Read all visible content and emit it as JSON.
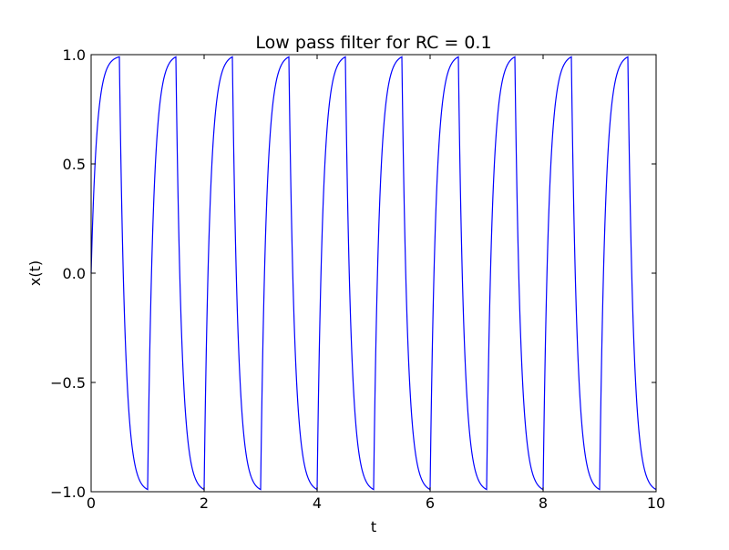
{
  "chart_data": {
    "type": "line",
    "title": "Low pass filter for RC = 0.1",
    "xlabel": "t",
    "ylabel": "x(t)",
    "xlim": [
      0,
      10
    ],
    "ylim": [
      -1.0,
      1.0
    ],
    "x_ticks": [
      0,
      2,
      4,
      6,
      8,
      10
    ],
    "y_ticks": [
      -1.0,
      -0.5,
      0.0,
      0.5,
      1.0
    ],
    "x_tick_labels": [
      "0",
      "2",
      "4",
      "6",
      "8",
      "10"
    ],
    "y_tick_labels": [
      "−1.0",
      "−0.5",
      "0.0",
      "0.5",
      "1.0"
    ],
    "grid": false,
    "legend": "none",
    "series": [
      {
        "color": "#0000ff",
        "x": [
          0,
          0.5,
          0.5,
          1.0,
          1.0,
          1.5,
          1.5,
          2.0,
          2.0,
          2.5,
          2.5,
          3.0,
          3.0,
          3.5,
          3.5,
          4.0,
          4.0,
          4.5,
          4.5,
          5.0,
          5.0,
          5.5,
          5.5,
          6.0,
          6.0,
          6.5,
          6.5,
          7.0,
          7.0,
          7.5,
          7.5,
          8.0,
          8.0,
          8.5,
          8.5,
          9.0,
          9.0,
          9.5,
          9.5,
          10.0
        ],
        "y": [
          0.0,
          0.99,
          0.99,
          -0.99,
          -0.99,
          0.99,
          0.99,
          -0.99,
          -0.99,
          0.99,
          0.99,
          -0.99,
          -0.99,
          0.99,
          0.99,
          -0.99,
          -0.99,
          0.99,
          0.99,
          -0.99,
          -0.99,
          0.99,
          0.99,
          -0.99,
          -0.99,
          0.99,
          0.99,
          -0.99,
          -0.99,
          0.99,
          0.99,
          -0.99,
          -0.99,
          0.99,
          0.99,
          -0.99,
          -0.99,
          0.99,
          0.99,
          -0.99
        ]
      }
    ]
  }
}
